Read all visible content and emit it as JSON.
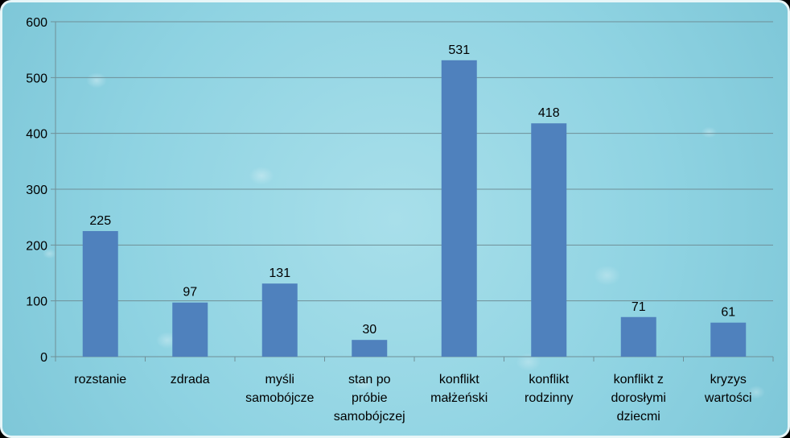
{
  "chart_data": {
    "type": "bar",
    "categories": [
      [
        "rozstanie"
      ],
      [
        "zdrada"
      ],
      [
        "myśli",
        "samobójcze"
      ],
      [
        "stan po",
        "próbie",
        "samobójczej"
      ],
      [
        "konflikt",
        "małżeński"
      ],
      [
        "konflikt",
        "rodzinny"
      ],
      [
        "konflikt z",
        "dorosłymi",
        "dziecmi"
      ],
      [
        "kryzys",
        "wartości"
      ]
    ],
    "values": [
      225,
      97,
      131,
      30,
      531,
      418,
      71,
      61
    ],
    "ylim": [
      0,
      600
    ],
    "yticks": [
      0,
      100,
      200,
      300,
      400,
      500,
      600
    ],
    "grid": true,
    "bar_color": "#4f81bd",
    "title": "",
    "xlabel": "",
    "ylabel": ""
  }
}
